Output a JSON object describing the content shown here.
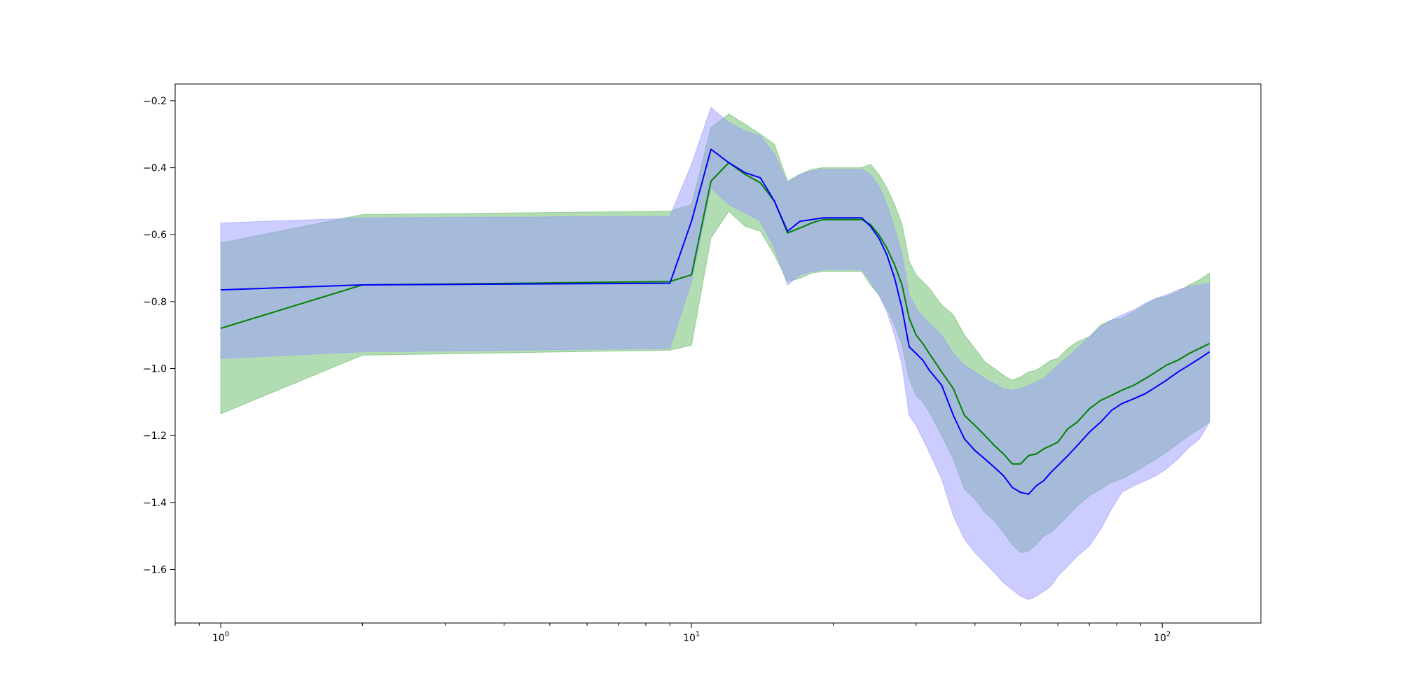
{
  "chart_data": {
    "type": "line",
    "title": "",
    "xlabel": "",
    "ylabel": "",
    "x_scale": "log",
    "xlim": [
      0.8,
      162
    ],
    "ylim": [
      -1.76,
      -0.15
    ],
    "grid": false,
    "legend": "none",
    "x_ticks": [
      {
        "value": 1,
        "base": "10",
        "exp": "0"
      },
      {
        "value": 10,
        "base": "10",
        "exp": "1"
      },
      {
        "value": 100,
        "base": "10",
        "exp": "2"
      }
    ],
    "y_ticks": [
      {
        "value": -0.2,
        "label": "−0.2"
      },
      {
        "value": -0.4,
        "label": "−0.4"
      },
      {
        "value": -0.6,
        "label": "−0.6"
      },
      {
        "value": -0.8,
        "label": "−0.8"
      },
      {
        "value": -1.0,
        "label": "−1.0"
      },
      {
        "value": -1.2,
        "label": "−1.2"
      },
      {
        "value": -1.4,
        "label": "−1.4"
      },
      {
        "value": -1.6,
        "label": "−1.6"
      }
    ],
    "x": [
      1,
      2,
      9,
      10,
      11,
      12,
      13,
      14,
      15,
      16,
      17,
      18,
      19,
      20,
      21,
      22,
      23,
      24,
      25,
      26,
      27,
      28,
      29,
      30,
      31,
      32,
      34,
      36,
      38,
      40,
      42,
      44,
      46,
      48,
      50,
      52,
      54,
      56,
      58,
      60,
      63,
      66,
      70,
      74,
      78,
      82,
      87,
      92,
      97,
      102,
      108,
      114,
      120,
      126
    ],
    "series": [
      {
        "color": "#008000",
        "band_color": "#66bb66",
        "values": [
          -0.88,
          -0.75,
          -0.74,
          -0.72,
          -0.44,
          -0.385,
          -0.42,
          -0.445,
          -0.5,
          -0.595,
          -0.58,
          -0.565,
          -0.555,
          -0.555,
          -0.555,
          -0.555,
          -0.555,
          -0.57,
          -0.6,
          -0.64,
          -0.69,
          -0.75,
          -0.85,
          -0.9,
          -0.925,
          -0.955,
          -1.01,
          -1.06,
          -1.14,
          -1.17,
          -1.2,
          -1.23,
          -1.255,
          -1.285,
          -1.285,
          -1.26,
          -1.255,
          -1.24,
          -1.23,
          -1.22,
          -1.18,
          -1.16,
          -1.12,
          -1.095,
          -1.08,
          -1.065,
          -1.05,
          -1.03,
          -1.01,
          -0.99,
          -0.975,
          -0.955,
          -0.94,
          -0.925
        ],
        "upper": [
          -0.625,
          -0.54,
          -0.53,
          -0.51,
          -0.28,
          -0.24,
          -0.27,
          -0.3,
          -0.33,
          -0.44,
          -0.42,
          -0.405,
          -0.4,
          -0.4,
          -0.4,
          -0.4,
          -0.4,
          -0.39,
          -0.42,
          -0.46,
          -0.51,
          -0.57,
          -0.68,
          -0.72,
          -0.74,
          -0.76,
          -0.81,
          -0.84,
          -0.9,
          -0.94,
          -0.98,
          -1.0,
          -1.02,
          -1.035,
          -1.025,
          -1.01,
          -1.005,
          -0.99,
          -0.975,
          -0.97,
          -0.94,
          -0.92,
          -0.905,
          -0.87,
          -0.855,
          -0.85,
          -0.83,
          -0.81,
          -0.79,
          -0.785,
          -0.77,
          -0.75,
          -0.735,
          -0.715
        ],
        "lower": [
          -1.135,
          -0.96,
          -0.945,
          -0.93,
          -0.61,
          -0.53,
          -0.575,
          -0.59,
          -0.66,
          -0.74,
          -0.73,
          -0.715,
          -0.71,
          -0.71,
          -0.71,
          -0.71,
          -0.71,
          -0.75,
          -0.78,
          -0.82,
          -0.87,
          -0.93,
          -1.03,
          -1.08,
          -1.1,
          -1.13,
          -1.2,
          -1.27,
          -1.36,
          -1.39,
          -1.43,
          -1.455,
          -1.49,
          -1.525,
          -1.55,
          -1.545,
          -1.525,
          -1.5,
          -1.49,
          -1.47,
          -1.44,
          -1.41,
          -1.38,
          -1.36,
          -1.34,
          -1.33,
          -1.31,
          -1.29,
          -1.27,
          -1.25,
          -1.225,
          -1.2,
          -1.18,
          -1.16
        ]
      },
      {
        "color": "#0000ff",
        "band_color": "#9999ff",
        "values": [
          -0.765,
          -0.75,
          -0.745,
          -0.56,
          -0.345,
          -0.385,
          -0.415,
          -0.43,
          -0.5,
          -0.59,
          -0.56,
          -0.555,
          -0.55,
          -0.55,
          -0.55,
          -0.55,
          -0.55,
          -0.575,
          -0.61,
          -0.66,
          -0.73,
          -0.82,
          -0.935,
          -0.955,
          -0.975,
          -1.005,
          -1.05,
          -1.14,
          -1.21,
          -1.245,
          -1.27,
          -1.295,
          -1.32,
          -1.355,
          -1.37,
          -1.375,
          -1.35,
          -1.335,
          -1.31,
          -1.29,
          -1.26,
          -1.23,
          -1.19,
          -1.16,
          -1.125,
          -1.105,
          -1.09,
          -1.075,
          -1.055,
          -1.035,
          -1.01,
          -0.99,
          -0.97,
          -0.95
        ],
        "upper": [
          -0.565,
          -0.55,
          -0.545,
          -0.39,
          -0.22,
          -0.265,
          -0.29,
          -0.305,
          -0.36,
          -0.445,
          -0.42,
          -0.41,
          -0.405,
          -0.405,
          -0.405,
          -0.405,
          -0.405,
          -0.42,
          -0.455,
          -0.51,
          -0.58,
          -0.66,
          -0.78,
          -0.82,
          -0.845,
          -0.865,
          -0.9,
          -0.955,
          -0.99,
          -1.01,
          -1.03,
          -1.045,
          -1.06,
          -1.065,
          -1.06,
          -1.05,
          -1.04,
          -1.03,
          -1.01,
          -0.99,
          -0.965,
          -0.94,
          -0.905,
          -0.875,
          -0.855,
          -0.84,
          -0.825,
          -0.805,
          -0.79,
          -0.78,
          -0.765,
          -0.755,
          -0.75,
          -0.745
        ],
        "lower": [
          -0.97,
          -0.95,
          -0.94,
          -0.74,
          -0.46,
          -0.51,
          -0.535,
          -0.56,
          -0.64,
          -0.75,
          -0.72,
          -0.71,
          -0.705,
          -0.705,
          -0.705,
          -0.705,
          -0.705,
          -0.74,
          -0.78,
          -0.83,
          -0.9,
          -0.99,
          -1.14,
          -1.17,
          -1.21,
          -1.25,
          -1.33,
          -1.44,
          -1.51,
          -1.55,
          -1.58,
          -1.61,
          -1.64,
          -1.66,
          -1.68,
          -1.69,
          -1.68,
          -1.665,
          -1.65,
          -1.62,
          -1.59,
          -1.56,
          -1.53,
          -1.48,
          -1.42,
          -1.37,
          -1.35,
          -1.335,
          -1.32,
          -1.3,
          -1.27,
          -1.235,
          -1.21,
          -1.16
        ]
      }
    ]
  }
}
